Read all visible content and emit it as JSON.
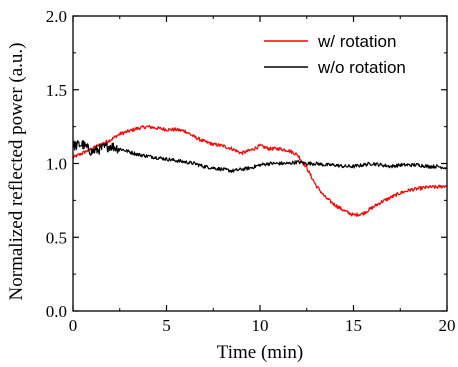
{
  "chart_data": {
    "type": "line",
    "title": "",
    "xlabel": "Time (min)",
    "ylabel": "Normalized reflected power (a.u.)",
    "xlim": [
      0,
      20
    ],
    "ylim": [
      0.0,
      2.0
    ],
    "x_ticks": [
      0,
      5,
      10,
      15,
      20
    ],
    "y_ticks": [
      0.0,
      0.5,
      1.0,
      1.5,
      2.0
    ],
    "x_tick_labels": [
      "0",
      "5",
      "10",
      "15",
      "20"
    ],
    "y_tick_labels": [
      "0.0",
      "0.5",
      "1.0",
      "1.5",
      "2.0"
    ],
    "grid": false,
    "legend_position": "top-right",
    "series": [
      {
        "name": "w/ rotation",
        "color": "#ff0000",
        "x": [
          0,
          0.5,
          1,
          1.5,
          2,
          2.5,
          3,
          3.5,
          4,
          4.5,
          5,
          5.5,
          6,
          6.5,
          7,
          7.5,
          8,
          8.5,
          9,
          9.5,
          10,
          10.5,
          11,
          11.5,
          12,
          12.5,
          13,
          13.5,
          14,
          14.5,
          15,
          15.5,
          16,
          16.5,
          17,
          17.5,
          18,
          18.5,
          19,
          19.5,
          20
        ],
        "y": [
          1.04,
          1.07,
          1.1,
          1.13,
          1.16,
          1.2,
          1.22,
          1.24,
          1.25,
          1.24,
          1.23,
          1.23,
          1.22,
          1.18,
          1.15,
          1.13,
          1.12,
          1.1,
          1.07,
          1.09,
          1.12,
          1.1,
          1.1,
          1.09,
          1.06,
          0.97,
          0.85,
          0.77,
          0.72,
          0.68,
          0.65,
          0.66,
          0.7,
          0.74,
          0.77,
          0.8,
          0.82,
          0.83,
          0.84,
          0.84,
          0.85
        ]
      },
      {
        "name": "w/o rotation",
        "color": "#000000",
        "x": [
          0,
          0.5,
          1,
          1.5,
          2,
          2.5,
          3,
          3.5,
          4,
          4.5,
          5,
          5.5,
          6,
          6.5,
          7,
          7.5,
          8,
          8.5,
          9,
          9.5,
          10,
          10.5,
          11,
          11.5,
          12,
          12.5,
          13,
          13.5,
          14,
          14.5,
          15,
          15.5,
          16,
          16.5,
          17,
          17.5,
          18,
          18.5,
          19,
          19.5,
          20
        ],
        "y": [
          1.12,
          1.13,
          1.08,
          1.1,
          1.12,
          1.1,
          1.08,
          1.06,
          1.05,
          1.04,
          1.03,
          1.02,
          1.01,
          1.0,
          0.98,
          0.97,
          0.96,
          0.95,
          0.96,
          0.97,
          0.99,
          1.0,
          1.0,
          1.0,
          1.01,
          1.0,
          1.0,
          0.99,
          0.99,
          0.98,
          0.98,
          0.99,
          1.0,
          0.99,
          0.98,
          0.99,
          0.99,
          0.99,
          0.98,
          0.98,
          0.97
        ]
      }
    ]
  }
}
